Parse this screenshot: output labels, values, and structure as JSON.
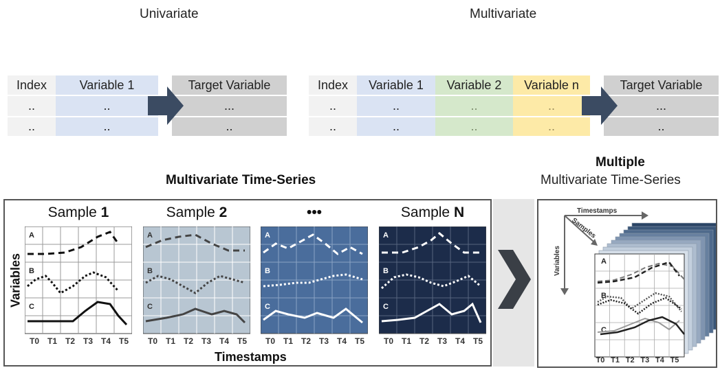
{
  "headers": {
    "univariate": "Univariate",
    "multivariate": "Multivariate"
  },
  "uni_table": {
    "index": "Index",
    "variable": "Variable 1",
    "target": "Target Variable",
    "row_idx": "..",
    "row_var": "..",
    "row_target_1": "...",
    "row_target_2": ".."
  },
  "multi_table": {
    "index": "Index",
    "variable1": "Variable 1",
    "variable2": "Variable 2",
    "variablen": "Variable n",
    "target": "Target Variable",
    "row_val": "..",
    "row_target_1": "...",
    "row_target_2": ".."
  },
  "mts": {
    "title": "Multivariate Time-Series",
    "samples": [
      {
        "prefix": "Sample ",
        "num": "1",
        "bg": "#ffffff",
        "line": "#111111",
        "grid": "#999999",
        "letter": "#222222"
      },
      {
        "prefix": "Sample ",
        "num": "2",
        "bg": "#b8c6d2",
        "line": "#444444",
        "grid": "#ffffff",
        "letter": "#333333"
      },
      {
        "prefix": "",
        "num": "•••",
        "bg": "#4a6d9c",
        "line": "#ffffff",
        "grid": "#8aa3c4",
        "letter": "#ffffff"
      },
      {
        "prefix": "Sample ",
        "num": "N",
        "bg": "#1c2c4a",
        "line": "#ffffff",
        "grid": "#56657f",
        "letter": "#ffffff"
      }
    ],
    "var_labels": [
      "A",
      "B",
      "C"
    ],
    "ticks": [
      "T0",
      "T1",
      "T2",
      "T3",
      "T4",
      "T5"
    ],
    "y_axis": "Variables",
    "x_axis": "Timestamps"
  },
  "mmts": {
    "title_bold": "Multiple",
    "title": "Multivariate Time-Series",
    "axis_timestamps": "Timestamps",
    "axis_samples": "Samples",
    "axis_variables": "Variables",
    "var_labels": [
      "A",
      "B",
      "C"
    ],
    "ticks": [
      "T0",
      "T1",
      "T2",
      "T3",
      "T4",
      "T5"
    ]
  },
  "colors": {
    "index_bg": "#f2f2f2",
    "var1_bg": "#dae3f3",
    "var2_bg": "#d5e8cb",
    "varn_bg": "#fdeaa7",
    "target_bg": "#d0d0d0",
    "arrow": "#3b4b62"
  }
}
